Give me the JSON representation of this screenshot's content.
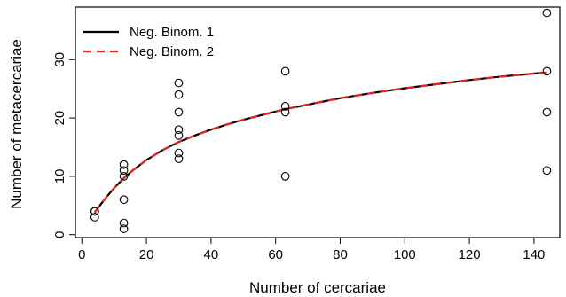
{
  "chart_data": {
    "type": "scatter",
    "xlabel": "Number of cercariae",
    "ylabel": "Number of metacercariae",
    "xlim": [
      -2,
      148
    ],
    "ylim": [
      -0.5,
      39
    ],
    "x_ticks": [
      0,
      20,
      40,
      60,
      80,
      100,
      120,
      140
    ],
    "y_ticks": [
      0,
      10,
      20,
      30
    ],
    "grid": false,
    "legend": {
      "position": "top-left"
    },
    "points": [
      {
        "x": 4,
        "y": 3
      },
      {
        "x": 4,
        "y": 4
      },
      {
        "x": 4,
        "y": 4
      },
      {
        "x": 13,
        "y": 1
      },
      {
        "x": 13,
        "y": 2
      },
      {
        "x": 13,
        "y": 6
      },
      {
        "x": 13,
        "y": 10
      },
      {
        "x": 13,
        "y": 11
      },
      {
        "x": 13,
        "y": 12
      },
      {
        "x": 30,
        "y": 13
      },
      {
        "x": 30,
        "y": 14
      },
      {
        "x": 30,
        "y": 17
      },
      {
        "x": 30,
        "y": 18
      },
      {
        "x": 30,
        "y": 21
      },
      {
        "x": 30,
        "y": 24
      },
      {
        "x": 30,
        "y": 26
      },
      {
        "x": 63,
        "y": 10
      },
      {
        "x": 63,
        "y": 21
      },
      {
        "x": 63,
        "y": 22
      },
      {
        "x": 63,
        "y": 28
      },
      {
        "x": 144,
        "y": 11
      },
      {
        "x": 144,
        "y": 21
      },
      {
        "x": 144,
        "y": 28
      },
      {
        "x": 144,
        "y": 38
      }
    ],
    "series": [
      {
        "name": "Neg. Binom. 1",
        "color": "#000000",
        "dash": "solid",
        "x": [
          4,
          6,
          8,
          10,
          13,
          16,
          20,
          25,
          30,
          35,
          40,
          45,
          50,
          55,
          60,
          63,
          70,
          80,
          90,
          100,
          110,
          120,
          130,
          140,
          144
        ],
        "y": [
          3.8,
          5.3,
          6.7,
          8.0,
          9.7,
          11.1,
          12.8,
          14.5,
          15.9,
          17.0,
          18.0,
          18.9,
          19.7,
          20.4,
          21.1,
          21.5,
          22.3,
          23.4,
          24.3,
          25.1,
          25.8,
          26.5,
          27.1,
          27.6,
          27.8
        ]
      },
      {
        "name": "Neg. Binom. 2",
        "color": "#e8221b",
        "dash": "dashed",
        "x": [
          4,
          6,
          8,
          10,
          13,
          16,
          20,
          25,
          30,
          35,
          40,
          45,
          50,
          55,
          60,
          63,
          70,
          80,
          90,
          100,
          110,
          120,
          130,
          140,
          144
        ],
        "y": [
          3.8,
          5.3,
          6.7,
          8.0,
          9.7,
          11.1,
          12.8,
          14.5,
          15.9,
          17.0,
          18.0,
          18.9,
          19.7,
          20.4,
          21.1,
          21.5,
          22.3,
          23.4,
          24.3,
          25.1,
          25.8,
          26.5,
          27.1,
          27.6,
          27.8
        ]
      }
    ]
  }
}
